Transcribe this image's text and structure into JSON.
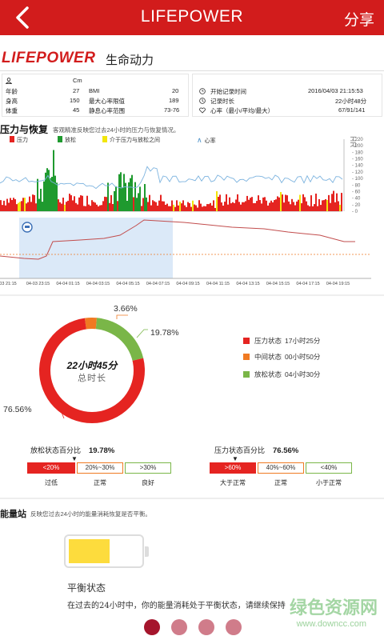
{
  "header": {
    "title": "LIFEPOWER",
    "share": "分享"
  },
  "brand": {
    "logo": "LIFEPOWER",
    "subtitle": "生命动力"
  },
  "profile": {
    "unit": "Cm",
    "rows": [
      {
        "label": "年龄",
        "value": "27",
        "label2": "BMI",
        "value2": "20"
      },
      {
        "label": "身高",
        "value": "150",
        "label2": "最大心率限值",
        "value2": "189"
      },
      {
        "label": "体重",
        "value": "45",
        "label2": "静息心率范围",
        "value2": "73-76"
      }
    ]
  },
  "record": {
    "rows": [
      {
        "label": "开始记录时间",
        "value": "2016/04/03 21:15:53"
      },
      {
        "label": "记录时长",
        "value": "22小时48分"
      },
      {
        "label": "心率（最小/平均/最大）",
        "value": "67/91/141"
      }
    ]
  },
  "stress_section": {
    "title": "压力与恢复",
    "desc": "客观精准反映您过去24小时的压力与恢复情况。",
    "legend": [
      {
        "label": "压力",
        "color": "#e52421"
      },
      {
        "label": "放松",
        "color": "#1f9a2f"
      },
      {
        "label": "介于压力与放松之间",
        "color": "#f2e60c"
      },
      {
        "label": "心率",
        "color": "#4a90c8"
      }
    ],
    "axis_title": "HR",
    "y_ticks": [
      "220",
      "200",
      "180",
      "160",
      "140",
      "120",
      "100",
      "80",
      "60",
      "40",
      "20",
      "0"
    ],
    "time_ticks": [
      "03 21:15",
      "04-03 23:15",
      "04-04 01:15",
      "04-04 03:15",
      "04-04 05:15",
      "04-04 07:15",
      "04-04 09:15",
      "04-04 11:15",
      "04-04 13:15",
      "04-04 15:15",
      "04-04 17:15",
      "04-04 19:15"
    ]
  },
  "summary": {
    "total_value": "22小时45分",
    "total_label": "总时长",
    "pct_labels": [
      "3.66%",
      "19.78%",
      "76.56%"
    ],
    "legend": [
      {
        "label": "压力状态",
        "value": "17小时25分",
        "color": "#e52421"
      },
      {
        "label": "中间状态",
        "value": "00小时50分",
        "color": "#f07a22"
      },
      {
        "label": "放松状态",
        "value": "04小时30分",
        "color": "#7ab648"
      }
    ],
    "relax": {
      "title": "放松状态百分比",
      "value": "19.78%",
      "segments": [
        "<20%",
        "20%~30%",
        ">30%"
      ],
      "labels": [
        "过低",
        "正常",
        "良好"
      ]
    },
    "stress": {
      "title": "压力状态百分比",
      "value": "76.56%",
      "segments": [
        ">60%",
        "40%~60%",
        "<40%"
      ],
      "labels": [
        "大于正常",
        "正常",
        "小于正常"
      ]
    }
  },
  "energy": {
    "title": "能量站",
    "desc": "反映您过去24小时的能量消耗恢复是否平衡。",
    "level": 0.55,
    "balance_title": "平衡状态",
    "balance_desc": "在过去的24小时中，你的能量消耗处于平衡状态，请继续保持"
  },
  "pager": {
    "count": 4,
    "active": 0
  },
  "watermark": {
    "text": "绿色资源网",
    "url": "www.downcc.com"
  },
  "chart_data": [
    {
      "type": "donut",
      "series": [
        {
          "name": "压力状态",
          "value": 76.56,
          "color": "#e52421"
        },
        {
          "name": "中间状态",
          "value": 3.66,
          "color": "#f07a22"
        },
        {
          "name": "放松状态",
          "value": 19.78,
          "color": "#7ab648"
        }
      ]
    }
  ]
}
